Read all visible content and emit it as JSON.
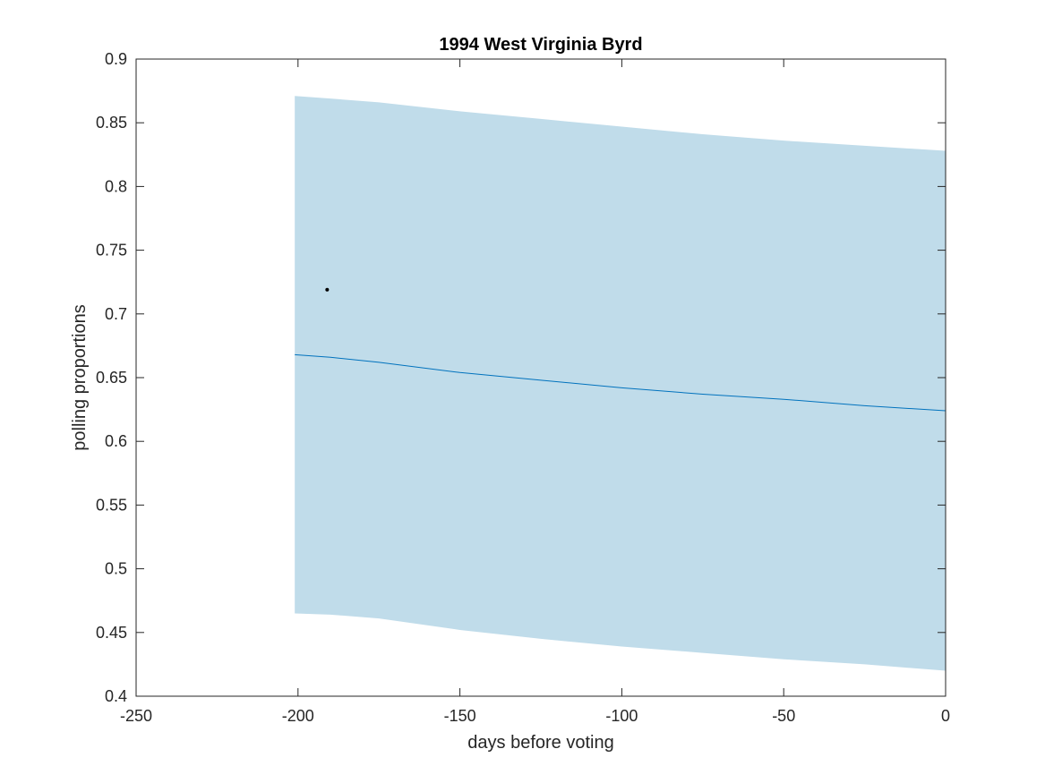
{
  "chart_data": {
    "type": "line",
    "title": "1994 West Virginia Byrd",
    "xlabel": "days before voting",
    "ylabel": "polling proportions",
    "xlim": [
      -250,
      0
    ],
    "ylim": [
      0.4,
      0.9
    ],
    "xticks": [
      -250,
      -200,
      -150,
      -100,
      -50,
      0
    ],
    "yticks": [
      0.4,
      0.45,
      0.5,
      0.55,
      0.6,
      0.65,
      0.7,
      0.75,
      0.8,
      0.85,
      0.9
    ],
    "xtick_labels": [
      "-250",
      "-200",
      "-150",
      "-100",
      "-50",
      "0"
    ],
    "ytick_labels": [
      "0.4",
      "0.45",
      "0.5",
      "0.55",
      "0.6",
      "0.65",
      "0.7",
      "0.75",
      "0.8",
      "0.85",
      "0.9"
    ],
    "grid": false,
    "band": {
      "x": [
        -201,
        -190,
        -175,
        -150,
        -125,
        -100,
        -75,
        -50,
        -25,
        0
      ],
      "upper": [
        0.871,
        0.869,
        0.866,
        0.859,
        0.853,
        0.847,
        0.841,
        0.836,
        0.832,
        0.828
      ],
      "lower": [
        0.465,
        0.464,
        0.461,
        0.452,
        0.445,
        0.439,
        0.434,
        0.429,
        0.425,
        0.42
      ],
      "color": "#c0dcea"
    },
    "series": [
      {
        "x": [
          -201,
          -190,
          -175,
          -150,
          -125,
          -100,
          -75,
          -50,
          -25,
          0
        ],
        "values": [
          0.668,
          0.666,
          0.662,
          0.654,
          0.648,
          0.642,
          0.637,
          0.633,
          0.628,
          0.624
        ],
        "color": "#0072bd"
      }
    ],
    "points": [
      {
        "x": -191,
        "y": 0.719,
        "color": "#000000"
      }
    ]
  }
}
